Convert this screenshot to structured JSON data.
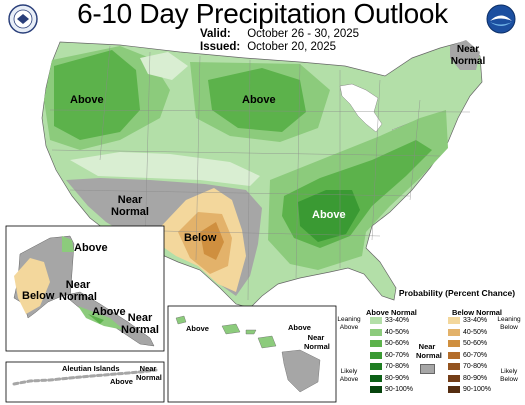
{
  "title": "6-10 Day Precipitation Outlook",
  "valid_label": "Valid:",
  "valid_value": "October 26 - 30, 2025",
  "issued_label": "Issued:",
  "issued_value": "October 20, 2025",
  "logos": {
    "left": "doc-seal-icon",
    "right": "noaa-logo-icon"
  },
  "map_labels": {
    "pacific_nw": "Above",
    "north_plains": "Above",
    "tennessee_valley": "Above",
    "southwest": "Near Normal",
    "texas": "Below",
    "new_england": "Near Normal",
    "alaska_north": "Above",
    "alaska_west": "Below",
    "alaska_interior": "Near Normal",
    "alaska_south": "Above",
    "alaska_panhandle": "Near Normal",
    "aleutian_islands": "Aleutian Islands",
    "aleutian_above": "Above",
    "aleutian_near": "Near Normal",
    "hawaii_west": "Above",
    "hawaii_above": "Above",
    "hawaii_near": "Near Normal"
  },
  "legend": {
    "title": "Probability (Percent Chance)",
    "above_header": "Above Normal",
    "below_header": "Below Normal",
    "near_label": "Near Normal",
    "leaning_above": "Leaning Above",
    "likely_above": "Likely Above",
    "leaning_below": "Leaning Below",
    "likely_below": "Likely Below",
    "above_ranges": [
      "33-40%",
      "40-50%",
      "50-60%",
      "60-70%",
      "70-80%",
      "80-90%",
      "90-100%"
    ],
    "below_ranges": [
      "33-40%",
      "40-50%",
      "50-60%",
      "60-70%",
      "70-80%",
      "80-90%",
      "90-100%"
    ],
    "above_colors": [
      "#b3dfa8",
      "#8ccb7c",
      "#5cb24b",
      "#3a9a33",
      "#1f7e22",
      "#0c6016",
      "#06440d"
    ],
    "below_colors": [
      "#f3d79c",
      "#e3b26a",
      "#cf8f3f",
      "#b46d2a",
      "#93531f",
      "#733d17",
      "#552d10"
    ],
    "near_color": "#a6a6a6"
  }
}
